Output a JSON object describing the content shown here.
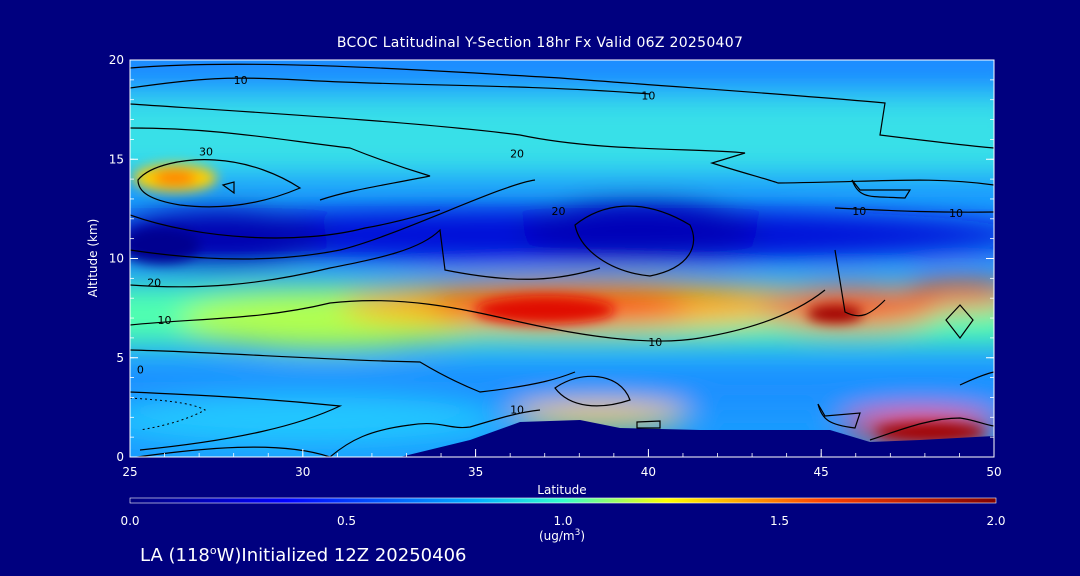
{
  "chart_data": {
    "type": "heatmap",
    "title": "BCOC Latitudinal Y-Section 18hr  Fx Valid 06Z 20250407",
    "xlabel": "Latitude",
    "ylabel": "Altitude (km)",
    "xlim": [
      25,
      50
    ],
    "ylim": [
      0,
      20
    ],
    "x_ticks": [
      "25",
      "30",
      "35",
      "40",
      "45",
      "50"
    ],
    "y_ticks": [
      "0",
      "5",
      "10",
      "15",
      "20"
    ],
    "colorbar": {
      "min": 0.0,
      "max": 2.0,
      "ticks": [
        "0.0",
        "0.5",
        "1.0",
        "1.5",
        "2.0"
      ],
      "units_label": "(ug/m",
      "units_sup": "3",
      "units_close": ")"
    },
    "features": [
      {
        "lat": 26.5,
        "alt": 14.0,
        "value": 1.4
      },
      {
        "lat": 37.5,
        "alt": 7.5,
        "value": 1.8
      },
      {
        "lat": 45.5,
        "alt": 7.3,
        "value": 2.0
      },
      {
        "lat": 48.5,
        "alt": 1.2,
        "value": 2.0
      },
      {
        "lat": 37.5,
        "alt": 11.5,
        "value": 0.1
      },
      {
        "lat": 28.0,
        "alt": 11.0,
        "value": 0.1
      }
    ],
    "contour_labels": [
      {
        "text": "10",
        "lat": 28.2,
        "alt": 19.0
      },
      {
        "text": "10",
        "lat": 40.0,
        "alt": 18.2
      },
      {
        "text": "30",
        "lat": 27.2,
        "alt": 15.4
      },
      {
        "text": "20",
        "lat": 36.2,
        "alt": 15.3
      },
      {
        "text": "20",
        "lat": 37.4,
        "alt": 12.4
      },
      {
        "text": "10",
        "lat": 46.1,
        "alt": 12.4
      },
      {
        "text": "10",
        "lat": 48.9,
        "alt": 12.3
      },
      {
        "text": "20",
        "lat": 25.7,
        "alt": 8.8
      },
      {
        "text": "10",
        "lat": 26.0,
        "alt": 6.9
      },
      {
        "text": "10",
        "lat": 40.2,
        "alt": 5.8
      },
      {
        "text": "0",
        "lat": 25.3,
        "alt": 4.4
      },
      {
        "text": "10",
        "lat": 36.2,
        "alt": 2.4
      }
    ]
  },
  "footer": {
    "pre": "LA (118",
    "deg": "o",
    "post": "W)Initialized 12Z 20250406"
  }
}
